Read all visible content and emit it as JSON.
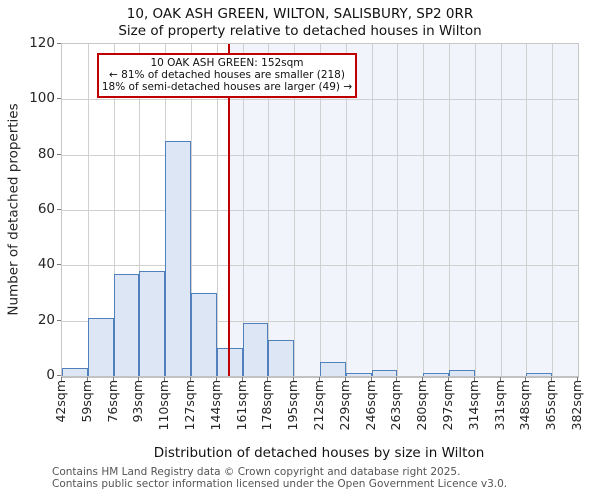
{
  "title_line1": "10, OAK ASH GREEN, WILTON, SALISBURY, SP2 0RR",
  "title_line2": "Size of property relative to detached houses in Wilton",
  "annotation": {
    "line1": "10 OAK ASH GREEN: 152sqm",
    "line2": "← 81% of detached houses are smaller (218)",
    "line3": "18% of semi-detached houses are larger (49) →"
  },
  "chart_data": {
    "type": "bar",
    "title": "10, OAK ASH GREEN, WILTON, SALISBURY, SP2 0RR — Size of property relative to detached houses in Wilton",
    "xlabel": "Distribution of detached houses by size in Wilton",
    "ylabel": "Number of detached properties",
    "bin_edges_sqm": [
      42,
      59,
      76,
      93,
      110,
      127,
      144,
      161,
      178,
      195,
      212,
      229,
      246,
      263,
      280,
      297,
      314,
      331,
      348,
      365,
      382
    ],
    "tick_labels": [
      "42sqm",
      "59sqm",
      "76sqm",
      "93sqm",
      "110sqm",
      "127sqm",
      "144sqm",
      "161sqm",
      "178sqm",
      "195sqm",
      "212sqm",
      "229sqm",
      "246sqm",
      "263sqm",
      "280sqm",
      "297sqm",
      "314sqm",
      "331sqm",
      "348sqm",
      "365sqm",
      "382sqm"
    ],
    "values": [
      3,
      21,
      37,
      38,
      85,
      30,
      10,
      19,
      13,
      0,
      5,
      1,
      2,
      0,
      1,
      2,
      0,
      0,
      1,
      0
    ],
    "yticks": [
      0,
      20,
      40,
      60,
      80,
      100,
      120
    ],
    "ylim": [
      0,
      120
    ],
    "xlim_sqm": [
      42,
      382
    ],
    "marker_value_sqm": 152,
    "grid": true,
    "legend": "none",
    "shaded_region": "right of marker line",
    "colors": {
      "bar_fill": "#dce6f4",
      "bar_edge": "#5081bd",
      "marker_red": "#c00000",
      "shade": "#f1f4fb",
      "gridline": "#d0d0d0"
    }
  },
  "footer": {
    "line1": "Contains HM Land Registry data © Crown copyright and database right 2025.",
    "line2": "Contains public sector information licensed under the Open Government Licence v3.0."
  }
}
